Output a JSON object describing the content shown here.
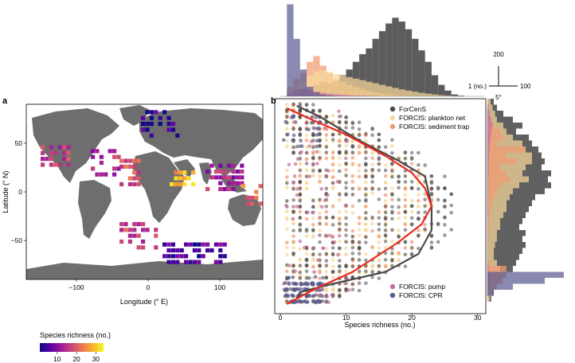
{
  "panel_a_label": "a",
  "panel_b_label": "b",
  "colorbar": {
    "title": "Species richness (no.)",
    "ticks": [
      "10",
      "20",
      "30"
    ],
    "tick_values": [
      10,
      20,
      30
    ],
    "range": [
      1,
      34
    ],
    "colors": [
      "#0d0887",
      "#5b02a3",
      "#9a179b",
      "#cb4678",
      "#eb7852",
      "#fbb32f",
      "#f0f921"
    ]
  },
  "legend_top": [
    "ForCenS",
    "FORCIS: plankton net",
    "FORCIS: sediment trap"
  ],
  "legend_bottom": [
    "FORCIS: pump",
    "FORCIS: CPR"
  ],
  "scale_bar": {
    "top": "200",
    "left": "1 (no.)",
    "right": "100",
    "bottom": "5°"
  },
  "colors": {
    "ForCenS": "#4a4a4a",
    "plankton_net": "#f6d89a",
    "sediment_trap": "#f29a73",
    "pump": "#c86fa0",
    "CPR": "#5b5b93",
    "red_line": "#e8291b",
    "land": "#6e6e6e"
  },
  "chart_data": [
    {
      "type": "heatmap",
      "panel": "a",
      "xlabel": "Longitude (° E)",
      "ylabel": "Latitude (° N)",
      "xlim": [
        -170,
        160
      ],
      "ylim": [
        -90,
        90
      ],
      "xticks": [
        -100,
        0,
        100
      ],
      "yticks": [
        -50,
        0,
        50
      ],
      "value_label": "Species richness (no.)",
      "clusters": [
        {
          "lon": [
            -150,
            -110
          ],
          "lat": [
            30,
            50
          ],
          "richness": 16
        },
        {
          "lon": [
            -80,
            -40
          ],
          "lat": [
            20,
            45
          ],
          "richness": 14
        },
        {
          "lon": [
            -40,
            -10
          ],
          "lat": [
            10,
            35
          ],
          "richness": 20
        },
        {
          "lon": [
            30,
            70
          ],
          "lat": [
            10,
            25
          ],
          "richness": 28
        },
        {
          "lon": [
            80,
            130
          ],
          "lat": [
            5,
            35
          ],
          "richness": 13
        },
        {
          "lon": [
            130,
            160
          ],
          "lat": [
            -10,
            20
          ],
          "richness": 22
        },
        {
          "lon": [
            -40,
            10
          ],
          "lat": [
            -55,
            -30
          ],
          "richness": 18
        },
        {
          "lon": [
            20,
            110
          ],
          "lat": [
            -70,
            -50
          ],
          "richness": 6
        },
        {
          "lon": [
            -10,
            40
          ],
          "lat": [
            60,
            85
          ],
          "richness": 4
        }
      ]
    },
    {
      "type": "scatter",
      "panel": "b",
      "xlabel": "Species richness (no.)",
      "ylabel": "",
      "xlim": [
        0,
        31
      ],
      "ylim": [
        -90,
        90
      ],
      "xticks": [
        0,
        10,
        20,
        30
      ],
      "yticks": [
        -50,
        0,
        50
      ],
      "series": [
        {
          "name": "ForCenS",
          "summary_line": [
            [
              2.5,
              84
            ],
            [
              6,
              75
            ],
            [
              12,
              55
            ],
            [
              18,
              38
            ],
            [
              22,
              25
            ],
            [
              23,
              0
            ],
            [
              23,
              -20
            ],
            [
              21,
              -40
            ],
            [
              16,
              -55
            ],
            [
              8,
              -65
            ],
            [
              3,
              -72
            ],
            [
              2.5,
              -77
            ]
          ]
        },
        {
          "name": "FORCIS: plankton net"
        },
        {
          "name": "FORCIS: sediment trap"
        },
        {
          "name": "FORCIS: pump"
        },
        {
          "name": "FORCIS: CPR"
        }
      ],
      "fit_line": [
        [
          1,
          82
        ],
        [
          5,
          72
        ],
        [
          10,
          60
        ],
        [
          16,
          42
        ],
        [
          20,
          28
        ],
        [
          22,
          15
        ],
        [
          23,
          0
        ],
        [
          21.5,
          -15
        ],
        [
          18,
          -30
        ],
        [
          11,
          -55
        ],
        [
          5,
          -70
        ],
        [
          1,
          -82
        ]
      ]
    },
    {
      "type": "bar",
      "panel": "b-top-histogram",
      "xlabel": "Species richness (no.)",
      "xlim": [
        0,
        31
      ],
      "bin_width": 1,
      "series": [
        {
          "name": "ForCenS",
          "values": [
            0,
            5,
            8,
            14,
            20,
            30,
            38,
            34,
            40,
            55,
            70,
            90,
            110,
            125,
            150,
            170,
            190,
            205,
            195,
            175,
            150,
            120,
            90,
            55,
            30,
            15,
            5,
            2,
            0,
            0,
            0
          ]
        },
        {
          "name": "FORCIS: sediment trap",
          "values": [
            0,
            25,
            45,
            60,
            90,
            105,
            80,
            60,
            45,
            38,
            30,
            24,
            18,
            14,
            10,
            7,
            5,
            3,
            2,
            1,
            0,
            0,
            0,
            0,
            0,
            0,
            0,
            0,
            0,
            0,
            0
          ]
        },
        {
          "name": "FORCIS: plankton net",
          "values": [
            0,
            12,
            24,
            38,
            55,
            65,
            68,
            64,
            58,
            54,
            50,
            46,
            42,
            38,
            34,
            30,
            26,
            22,
            18,
            15,
            12,
            9,
            7,
            5,
            3,
            2,
            1,
            1,
            0,
            0,
            0
          ]
        },
        {
          "name": "FORCIS: pump",
          "values": [
            0,
            10,
            18,
            20,
            16,
            12,
            9,
            7,
            5,
            4,
            3,
            2,
            2,
            1,
            1,
            0,
            0,
            0,
            0,
            0,
            0,
            0,
            0,
            0,
            0,
            0,
            0,
            0,
            0,
            0,
            0
          ]
        },
        {
          "name": "FORCIS: CPR",
          "values": [
            0,
            240,
            150,
            70,
            25,
            10,
            4,
            2,
            1,
            0,
            0,
            0,
            0,
            0,
            0,
            0,
            0,
            0,
            0,
            0,
            0,
            0,
            0,
            0,
            0,
            0,
            0,
            0,
            0,
            0,
            0
          ]
        }
      ]
    },
    {
      "type": "bar",
      "panel": "b-right-histogram",
      "ylabel": "Latitude (° N)",
      "orientation": "horizontal",
      "ylim": [
        -90,
        90
      ],
      "bin_width": 5,
      "lat_bins": [
        85,
        80,
        75,
        70,
        65,
        60,
        55,
        50,
        45,
        40,
        35,
        30,
        25,
        20,
        15,
        10,
        5,
        0,
        -5,
        -10,
        -15,
        -20,
        -25,
        -30,
        -35,
        -40,
        -45,
        -50,
        -55,
        -60,
        -65,
        -70,
        -75,
        -80
      ],
      "series": [
        {
          "name": "ForCenS",
          "values": [
            10,
            15,
            25,
            40,
            55,
            45,
            65,
            70,
            80,
            85,
            90,
            85,
            100,
            95,
            100,
            90,
            75,
            70,
            65,
            60,
            55,
            50,
            60,
            55,
            60,
            55,
            50,
            45,
            40,
            30,
            22,
            15,
            10,
            6
          ]
        },
        {
          "name": "FORCIS: plankton net",
          "values": [
            5,
            8,
            12,
            15,
            25,
            30,
            40,
            55,
            60,
            70,
            70,
            60,
            55,
            65,
            50,
            40,
            35,
            30,
            30,
            25,
            20,
            20,
            15,
            15,
            12,
            10,
            10,
            15,
            20,
            30,
            25,
            15,
            8,
            4
          ]
        },
        {
          "name": "FORCIS: sediment trap",
          "values": [
            0,
            0,
            0,
            5,
            10,
            20,
            25,
            15,
            60,
            30,
            45,
            20,
            30,
            35,
            20,
            15,
            10,
            8,
            5,
            4,
            3,
            3,
            2,
            2,
            1,
            1,
            1,
            5,
            30,
            25,
            20,
            15,
            5,
            0
          ]
        },
        {
          "name": "FORCIS: pump",
          "values": [
            0,
            2,
            4,
            6,
            8,
            6,
            5,
            4,
            3,
            3,
            2,
            2,
            2,
            1,
            1,
            1,
            1,
            1,
            1,
            1,
            0,
            0,
            0,
            0,
            0,
            0,
            0,
            0,
            2,
            4,
            3,
            2,
            1,
            0
          ]
        },
        {
          "name": "FORCIS: CPR",
          "values": [
            0,
            0,
            0,
            0,
            0,
            0,
            0,
            0,
            0,
            0,
            0,
            0,
            0,
            0,
            0,
            0,
            0,
            0,
            0,
            0,
            0,
            0,
            0,
            0,
            0,
            0,
            0,
            0,
            0,
            120,
            90,
            40,
            10,
            0
          ]
        }
      ]
    }
  ]
}
